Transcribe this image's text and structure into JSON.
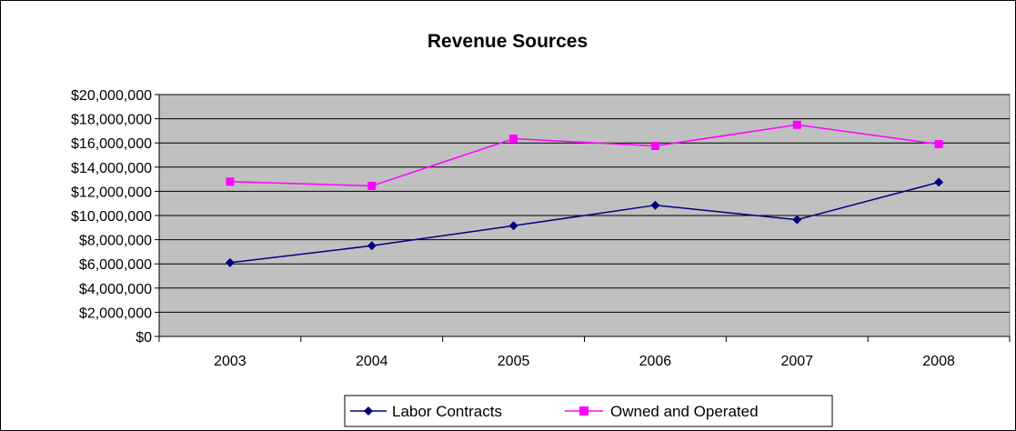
{
  "chart_data": {
    "type": "line",
    "title": "Revenue Sources",
    "xlabel": "",
    "ylabel": "",
    "categories": [
      "2003",
      "2004",
      "2005",
      "2006",
      "2007",
      "2008"
    ],
    "ylim": [
      0,
      20000000
    ],
    "yticks": [
      0,
      2000000,
      4000000,
      6000000,
      8000000,
      10000000,
      12000000,
      14000000,
      16000000,
      18000000,
      20000000
    ],
    "ytick_labels": [
      "$0",
      "$2,000,000",
      "$4,000,000",
      "$6,000,000",
      "$8,000,000",
      "$10,000,000",
      "$12,000,000",
      "$14,000,000",
      "$16,000,000",
      "$18,000,000",
      "$20,000,000"
    ],
    "grid": true,
    "legend_position": "bottom",
    "plot_background": "#c0c0c0",
    "series": [
      {
        "name": "Labor Contracts",
        "color": "#000080",
        "marker": "diamond",
        "values": [
          6100000,
          7500000,
          9150000,
          10850000,
          9650000,
          12750000
        ]
      },
      {
        "name": "Owned and Operated",
        "color": "#ff00ff",
        "marker": "square",
        "values": [
          12800000,
          12450000,
          16350000,
          15750000,
          17500000,
          15900000
        ]
      }
    ]
  }
}
